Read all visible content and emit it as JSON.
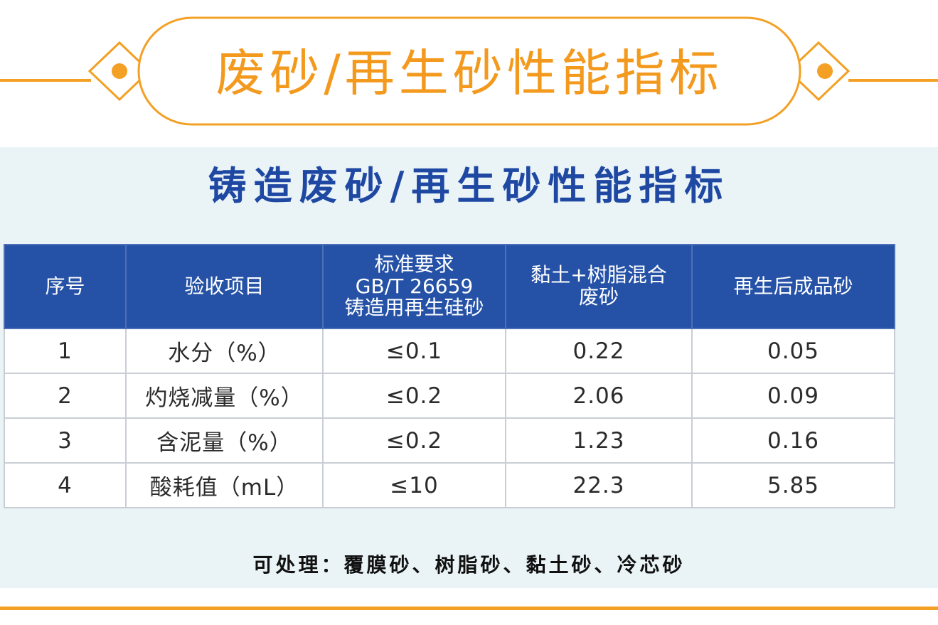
{
  "banner": {
    "title": "废砂/再生砂性能指标"
  },
  "panel": {
    "title": "铸造废砂/再生砂性能指标"
  },
  "table": {
    "headers": [
      {
        "lines": [
          "序号"
        ]
      },
      {
        "lines": [
          "验收项目"
        ]
      },
      {
        "lines": [
          "标准要求",
          "GB/T 26659",
          "铸造用再生硅砂"
        ]
      },
      {
        "lines": [
          "黏土+树脂混合",
          "废砂"
        ]
      },
      {
        "lines": [
          "再生后成品砂"
        ]
      }
    ],
    "rows": [
      [
        "1",
        "水分（%）",
        "≤0.1",
        "0.22",
        "0.05"
      ],
      [
        "2",
        "灼烧减量（%）",
        "≤0.2",
        "2.06",
        "0.09"
      ],
      [
        "3",
        "含泥量（%）",
        "≤0.2",
        "1.23",
        "0.16"
      ],
      [
        "4",
        "酸耗值（mL）",
        "≤10",
        "22.3",
        "5.85"
      ]
    ]
  },
  "footer": {
    "note": "可处理：覆膜砂、树脂砂、黏土砂、冷芯砂"
  },
  "colors": {
    "accent_orange": "#f39a1e",
    "title_blue": "#1f48a3",
    "header_blue": "#2552a6",
    "panel_bg": "#eaf4f7"
  }
}
